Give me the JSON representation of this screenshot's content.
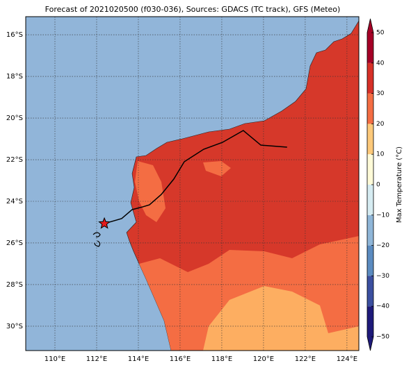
{
  "chart_data": {
    "type": "map",
    "title": "Forecast of 2021020500 (f030-036), Sources: GDACS (TC track), GFS (Meteo)",
    "xlim": [
      108.6,
      124.57
    ],
    "ylim": [
      -31.17,
      -15.13
    ],
    "xticks": [
      {
        "value": 110,
        "label": "110°E"
      },
      {
        "value": 112,
        "label": "112°E"
      },
      {
        "value": 114,
        "label": "114°E"
      },
      {
        "value": 116,
        "label": "116°E"
      },
      {
        "value": 118,
        "label": "118°E"
      },
      {
        "value": 120,
        "label": "120°E"
      },
      {
        "value": 122,
        "label": "122°E"
      },
      {
        "value": 124,
        "label": "124°E"
      }
    ],
    "yticks": [
      {
        "value": -16,
        "label": "16°S"
      },
      {
        "value": -18,
        "label": "18°S"
      },
      {
        "value": -20,
        "label": "20°S"
      },
      {
        "value": -22,
        "label": "22°S"
      },
      {
        "value": -24,
        "label": "24°S"
      },
      {
        "value": -26,
        "label": "26°S"
      },
      {
        "value": -28,
        "label": "28°S"
      },
      {
        "value": -30,
        "label": "30°S"
      }
    ],
    "grid": true,
    "track": {
      "color": "#000000",
      "lon": [
        121.13,
        119.87,
        119.03,
        118.03,
        117.13,
        116.2,
        115.7,
        115.1,
        114.53,
        114.2,
        113.7,
        113.2,
        112.37
      ],
      "lat": [
        -21.4,
        -21.3,
        -20.6,
        -21.17,
        -21.5,
        -22.1,
        -22.93,
        -23.67,
        -24.17,
        -24.27,
        -24.4,
        -24.83,
        -25.07
      ]
    },
    "marker_color": "#e41a1c",
    "colorbar": {
      "label": "Max Temperature (°C)",
      "lim": [
        -50,
        50
      ],
      "ticks": [
        {
          "value": 50,
          "label": "50"
        },
        {
          "value": 40,
          "label": "40"
        },
        {
          "value": 30,
          "label": "30"
        },
        {
          "value": 20,
          "label": "20"
        },
        {
          "value": 10,
          "label": "10"
        },
        {
          "value": 0,
          "label": "0"
        },
        {
          "value": -10,
          "label": "−10"
        },
        {
          "value": -20,
          "label": "−20"
        },
        {
          "value": -30,
          "label": "−30"
        },
        {
          "value": -40,
          "label": "−40"
        },
        {
          "value": -50,
          "label": "−50"
        }
      ],
      "colors": [
        "#1e1a7a",
        "#3b4fa0",
        "#5b8bc0",
        "#8fb6d8",
        "#d6ecf2",
        "#fffbd8",
        "#fdc97a",
        "#f46d43",
        "#d73027",
        "#a50026"
      ]
    }
  }
}
